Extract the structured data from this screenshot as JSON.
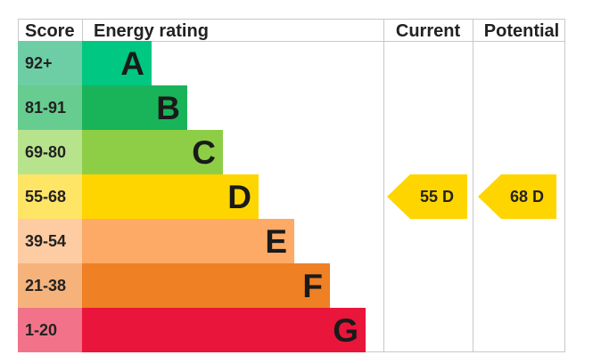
{
  "headers": {
    "score": "Score",
    "rating": "Energy rating",
    "current": "Current",
    "potential": "Potential"
  },
  "chart_data": {
    "type": "bar",
    "title": "",
    "categories": [
      "A",
      "B",
      "C",
      "D",
      "E",
      "F",
      "G"
    ],
    "bands": [
      {
        "letter": "A",
        "score": "92+",
        "color": "#00c781",
        "score_bg": "#6dcea6"
      },
      {
        "letter": "B",
        "score": "81-91",
        "color": "#19b459",
        "score_bg": "#66cc8f"
      },
      {
        "letter": "C",
        "score": "69-80",
        "color": "#8dce46",
        "score_bg": "#b8e38d"
      },
      {
        "letter": "D",
        "score": "55-68",
        "color": "#ffd500",
        "score_bg": "#ffe566"
      },
      {
        "letter": "E",
        "score": "39-54",
        "color": "#fcaa65",
        "score_bg": "#fdcca3"
      },
      {
        "letter": "F",
        "score": "21-38",
        "color": "#ef8023",
        "score_bg": "#f5b37b"
      },
      {
        "letter": "G",
        "score": "1-20",
        "color": "#e9153b",
        "score_bg": "#f27389"
      }
    ],
    "current": {
      "value": 55,
      "letter": "D",
      "label": "55 D",
      "color": "#ffd500"
    },
    "potential": {
      "value": 68,
      "letter": "D",
      "label": "68 D",
      "color": "#ffd500"
    }
  }
}
